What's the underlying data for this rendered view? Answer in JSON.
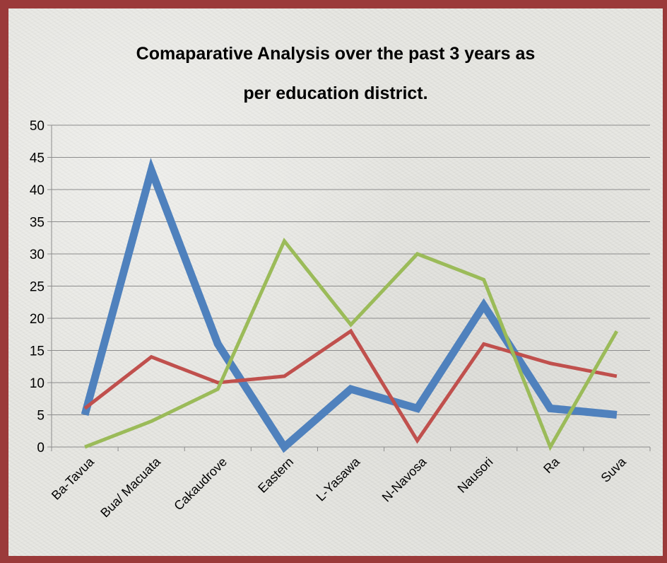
{
  "chart_data": {
    "type": "line",
    "title": "Comaparative Analysis over the past 3 years as\nper education district.",
    "categories": [
      "Ba-Tavua",
      "Bua/ Macuata",
      "Cakaudrove",
      "Eastern",
      "L-Yasawa",
      "N-Navosa",
      "Nausori",
      "Ra",
      "Suva"
    ],
    "series": [
      {
        "color": "#4f81bd",
        "values": [
          5,
          43,
          16,
          0,
          9,
          6,
          22,
          6,
          5
        ]
      },
      {
        "color": "#c0504d",
        "values": [
          6,
          14,
          10,
          11,
          18,
          1,
          16,
          13,
          11
        ]
      },
      {
        "color": "#9bbb59",
        "values": [
          0,
          4,
          9,
          32,
          19,
          30,
          26,
          0,
          18
        ]
      }
    ],
    "ylim": [
      0,
      50
    ],
    "yticks": [
      0,
      5,
      10,
      15,
      20,
      25,
      30,
      35,
      40,
      45,
      50
    ],
    "grid": true,
    "legend": "none"
  }
}
